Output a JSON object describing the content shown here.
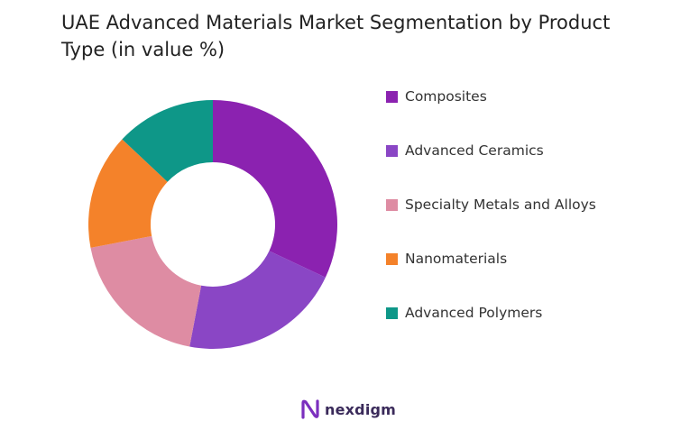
{
  "title": "UAE Advanced Materials Market Segmentation by Product Type (in value %)",
  "chart_data": {
    "type": "pie",
    "variant": "donut",
    "title": "UAE Advanced Materials Market Segmentation by Product Type (in value %)",
    "legend_position": "right",
    "series": [
      {
        "name": "Composites",
        "value": 32,
        "color": "#8B22B0"
      },
      {
        "name": "Advanced Ceramics",
        "value": 21,
        "color": "#8A46C5"
      },
      {
        "name": "Specialty Metals and Alloys",
        "value": 19,
        "color": "#DE8CA3"
      },
      {
        "name": "Nanomaterials",
        "value": 15,
        "color": "#F4822A"
      },
      {
        "name": "Advanced Polymers",
        "value": 13,
        "color": "#0E9788"
      }
    ]
  },
  "brand": {
    "name": "nexdigm",
    "color": "#7B2FBE"
  }
}
